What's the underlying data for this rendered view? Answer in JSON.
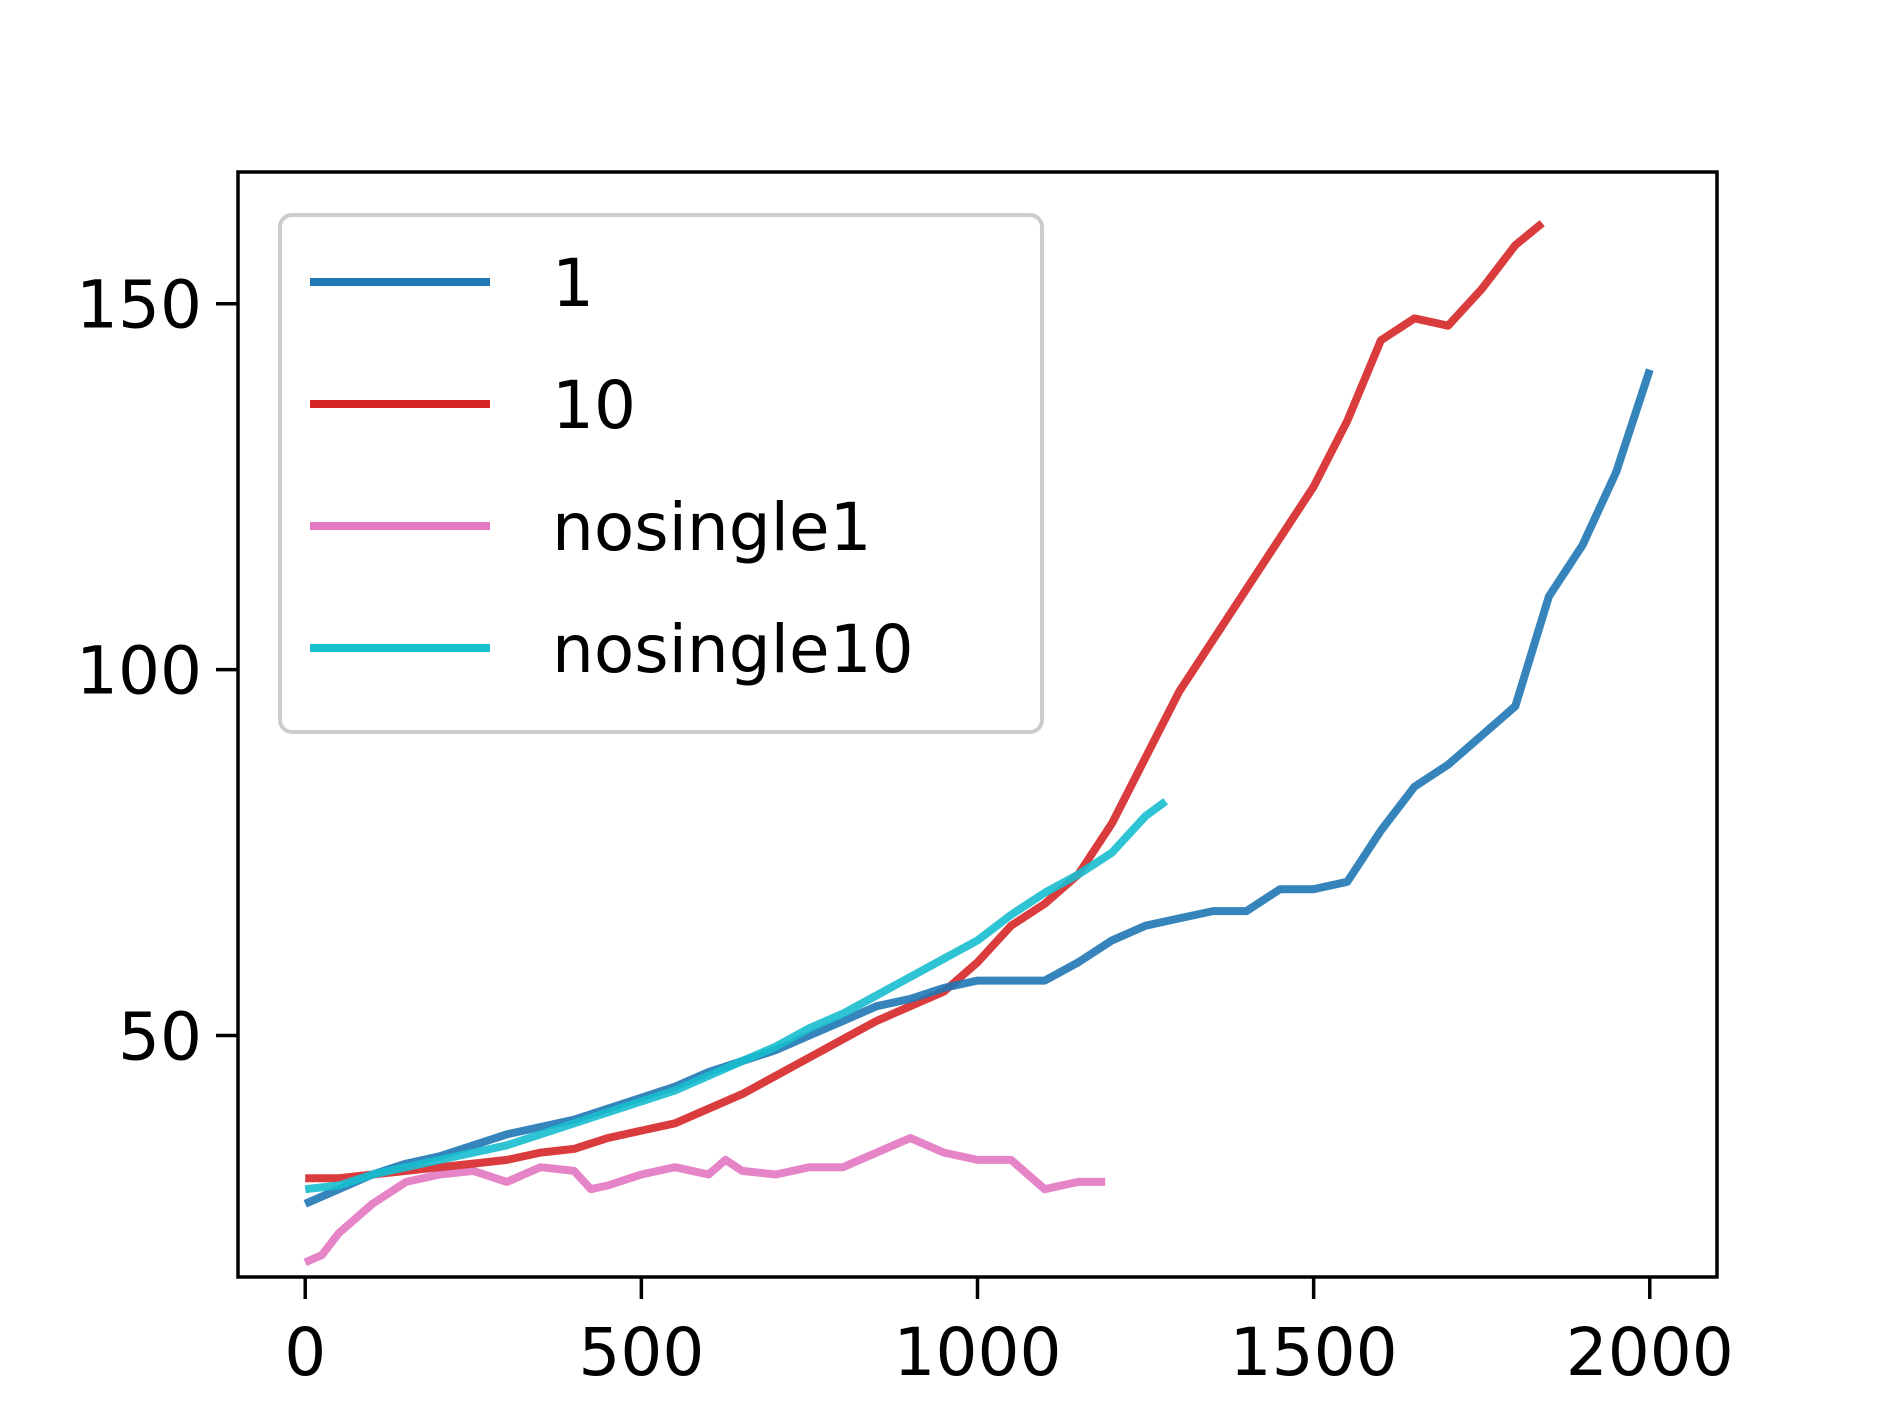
{
  "chart_data": {
    "type": "line",
    "title": "",
    "xlabel": "",
    "ylabel": "",
    "xlim": [
      -100,
      2100
    ],
    "ylim": [
      17,
      168
    ],
    "xticks": [
      0,
      500,
      1000,
      1500,
      2000
    ],
    "yticks": [
      50,
      100,
      150
    ],
    "x_tick_labels": [
      "0",
      "500",
      "1000",
      "1500",
      "2000"
    ],
    "y_tick_labels": [
      "50",
      "100",
      "150"
    ],
    "grid": false,
    "legend_position": "upper-left",
    "series": [
      {
        "name": "1",
        "color": "#1f77b4",
        "x": [
          0,
          50,
          100,
          150,
          200,
          250,
          300,
          350,
          400,
          450,
          500,
          550,
          600,
          650,
          700,
          750,
          800,
          850,
          900,
          950,
          1000,
          1050,
          1100,
          1150,
          1200,
          1250,
          1300,
          1350,
          1400,
          1450,
          1500,
          1550,
          1600,
          1650,
          1700,
          1750,
          1800,
          1850,
          1900,
          1950,
          2000
        ],
        "y": [
          27,
          29,
          31,
          32.5,
          33.5,
          35,
          36.5,
          37.5,
          38.5,
          40,
          41.5,
          43,
          45,
          46.5,
          48,
          50,
          52,
          54,
          55,
          56.5,
          57.5,
          57.5,
          57.5,
          60,
          63,
          65,
          66,
          67,
          67,
          70,
          70,
          71,
          78,
          84,
          87,
          91,
          95,
          110,
          117,
          127,
          141
        ]
      },
      {
        "name": "10",
        "color": "#d62728",
        "x": [
          0,
          50,
          100,
          150,
          200,
          250,
          300,
          350,
          400,
          450,
          500,
          550,
          600,
          650,
          700,
          750,
          800,
          850,
          900,
          950,
          1000,
          1050,
          1100,
          1150,
          1200,
          1250,
          1300,
          1350,
          1400,
          1450,
          1500,
          1550,
          1600,
          1650,
          1700,
          1750,
          1800,
          1840
        ],
        "y": [
          30.5,
          30.5,
          31,
          31.5,
          32,
          32.5,
          33,
          34,
          34.5,
          36,
          37,
          38,
          40,
          42,
          44.5,
          47,
          49.5,
          52,
          54,
          56,
          60,
          65,
          68,
          72,
          79,
          88,
          97,
          104,
          111,
          118,
          125,
          134,
          145,
          148,
          147,
          152,
          158,
          161
        ]
      },
      {
        "name": "nosingle1",
        "color": "#e377c2",
        "x": [
          0,
          25,
          50,
          75,
          100,
          150,
          200,
          250,
          300,
          350,
          400,
          425,
          450,
          500,
          550,
          600,
          625,
          650,
          700,
          750,
          800,
          850,
          900,
          925,
          950,
          1000,
          1050,
          1100,
          1150,
          1190
        ],
        "y": [
          19,
          20,
          23,
          25,
          27,
          30,
          31,
          31.5,
          30,
          32,
          31.5,
          29,
          29.5,
          31,
          32,
          31,
          33,
          31.5,
          31,
          32,
          32,
          34,
          36,
          35,
          34,
          33,
          33,
          29,
          30,
          30
        ]
      },
      {
        "name": "nosingle10",
        "color": "#17becf",
        "x": [
          0,
          50,
          100,
          150,
          200,
          250,
          300,
          350,
          400,
          450,
          500,
          550,
          600,
          650,
          700,
          750,
          800,
          850,
          900,
          950,
          1000,
          1050,
          1100,
          1150,
          1200,
          1250,
          1280
        ],
        "y": [
          29,
          29.5,
          31,
          32,
          33,
          34,
          35,
          36.5,
          38,
          39.5,
          41,
          42.5,
          44.5,
          46.5,
          48.5,
          51,
          53,
          55.5,
          58,
          60.5,
          63,
          66.5,
          69.5,
          72,
          75,
          80,
          82
        ]
      }
    ]
  }
}
